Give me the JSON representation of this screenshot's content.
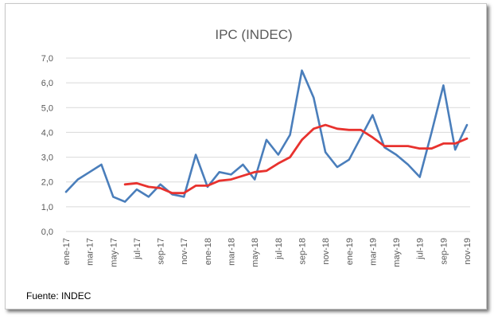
{
  "chart_data": {
    "type": "line",
    "title": "IPC (INDEC)",
    "ylim": [
      0,
      7
    ],
    "yticks": [
      "0,0",
      "1,0",
      "2,0",
      "3,0",
      "4,0",
      "5,0",
      "6,0",
      "7,0"
    ],
    "grid": "horizontal",
    "legend": "none",
    "x": [
      "ene-17",
      "feb-17",
      "mar-17",
      "abr-17",
      "may-17",
      "jun-17",
      "jul-17",
      "ago-17",
      "sep-17",
      "oct-17",
      "nov-17",
      "dic-17",
      "ene-18",
      "feb-18",
      "mar-18",
      "abr-18",
      "may-18",
      "jun-18",
      "jul-18",
      "ago-18",
      "sep-18",
      "oct-18",
      "nov-18",
      "dic-18",
      "ene-19",
      "feb-19",
      "mar-19",
      "abr-19",
      "may-19",
      "jun-19",
      "jul-19",
      "ago-19",
      "sep-19",
      "oct-19",
      "nov-19"
    ],
    "xtick_labels": [
      "ene-17",
      "mar-17",
      "may-17",
      "jul-17",
      "sep-17",
      "nov-17",
      "ene-18",
      "mar-18",
      "may-18",
      "jul-18",
      "sep-18",
      "nov-18",
      "ene-19",
      "mar-19",
      "may-19",
      "jul-19",
      "sep-19",
      "nov-19"
    ],
    "series": [
      {
        "color": "#4a7ebb",
        "values": [
          1.6,
          2.1,
          2.4,
          2.7,
          1.4,
          1.2,
          1.7,
          1.4,
          1.9,
          1.5,
          1.4,
          3.1,
          1.8,
          2.4,
          2.3,
          2.7,
          2.1,
          3.7,
          3.1,
          3.9,
          6.5,
          5.4,
          3.2,
          2.6,
          2.9,
          3.8,
          4.7,
          3.4,
          3.1,
          2.7,
          2.2,
          4.0,
          5.9,
          3.3,
          4.3
        ]
      },
      {
        "color": "#e8322e",
        "values": [
          null,
          null,
          null,
          null,
          null,
          1.9,
          1.95,
          1.8,
          1.75,
          1.55,
          1.55,
          1.85,
          1.85,
          2.05,
          2.1,
          2.25,
          2.4,
          2.45,
          2.75,
          3.0,
          3.7,
          4.15,
          4.3,
          4.15,
          4.1,
          4.1,
          3.8,
          3.45,
          3.45,
          3.45,
          3.35,
          3.35,
          3.55,
          3.55,
          3.75
        ]
      }
    ],
    "source": "Fuente: INDEC"
  }
}
